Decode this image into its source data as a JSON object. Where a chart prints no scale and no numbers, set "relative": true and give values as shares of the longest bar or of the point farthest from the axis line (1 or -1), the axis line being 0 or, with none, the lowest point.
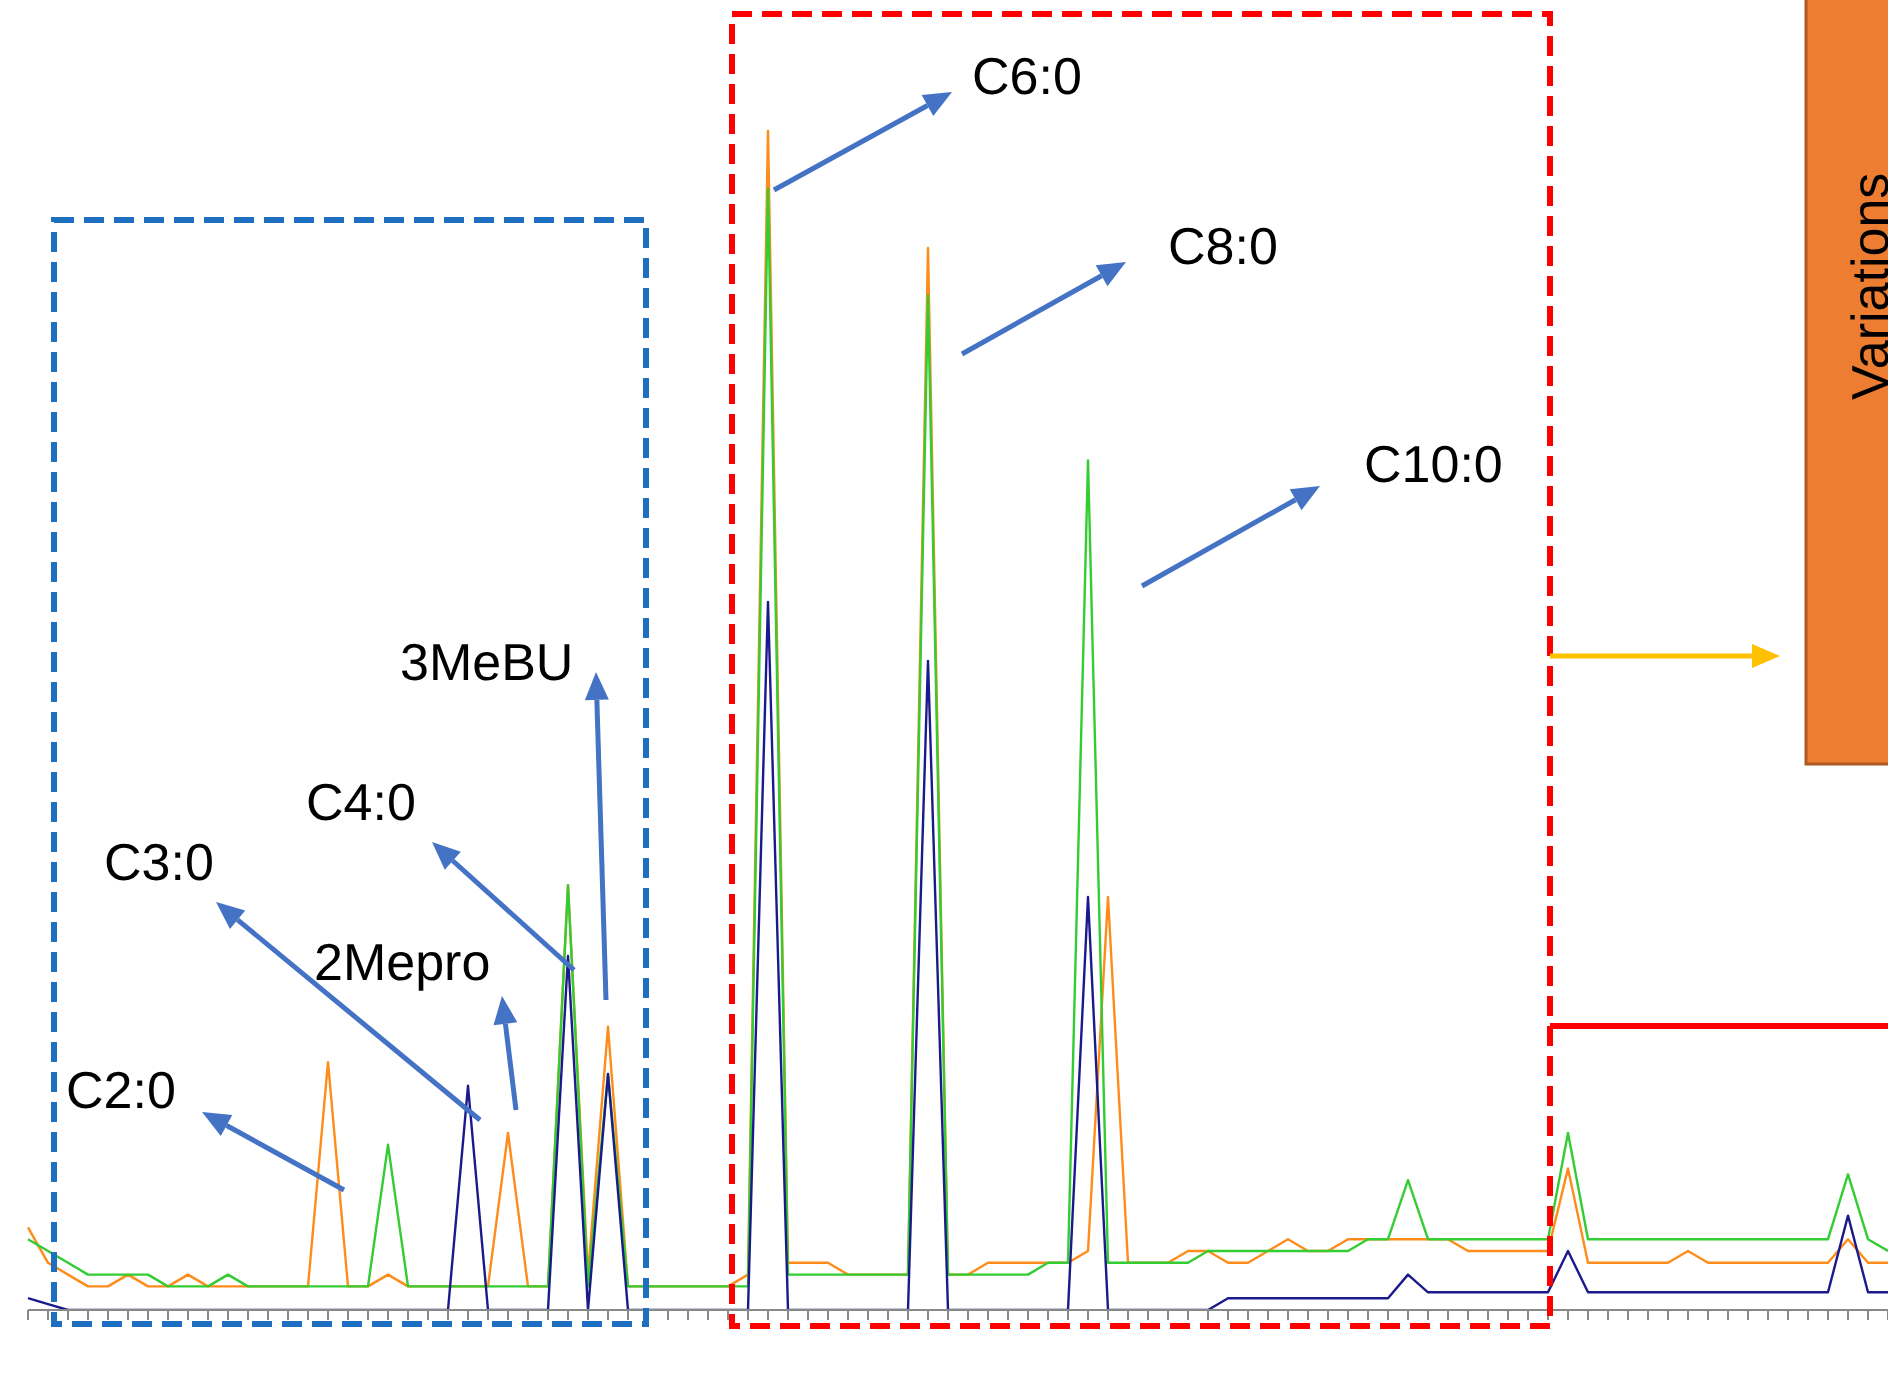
{
  "chart_data": {
    "type": "line",
    "relative": true,
    "categories": [
      null,
      null,
      null,
      null,
      null,
      null,
      null,
      null,
      null,
      null,
      null,
      null,
      null,
      null,
      null,
      null,
      null,
      null,
      null,
      null,
      null,
      null,
      null,
      null,
      null,
      null,
      null,
      null,
      null,
      null,
      null,
      null,
      null,
      null,
      null,
      null,
      null,
      null,
      null,
      null,
      null,
      null,
      null,
      null,
      null,
      null,
      null,
      null,
      null,
      null,
      null,
      null,
      null,
      null,
      null,
      null,
      null,
      null,
      null,
      null,
      null,
      null,
      null,
      null,
      null,
      null,
      null,
      null,
      null,
      null,
      null,
      null,
      null,
      null,
      null,
      null,
      null,
      null,
      null,
      null,
      null,
      null,
      null,
      null,
      null,
      null,
      null,
      null,
      null,
      null,
      null,
      null,
      null,
      null
    ],
    "series": [
      {
        "color": "#ff8c1a",
        "values": [
          0.07,
          0.04,
          0.03,
          0.02,
          0.02,
          0.03,
          0.02,
          0.02,
          0.03,
          0.02,
          0.02,
          0.02,
          0.02,
          0.02,
          0.02,
          0.21,
          0.02,
          0.02,
          0.03,
          0.02,
          0.02,
          0.02,
          0.02,
          0.02,
          0.15,
          0.02,
          0.02,
          0.36,
          0.03,
          0.24,
          0.02,
          0.02,
          0.02,
          0.02,
          0.02,
          0.02,
          0.03,
          1,
          0.04,
          0.04,
          0.04,
          0.03,
          0.03,
          0.03,
          0.03,
          0.9,
          0.03,
          0.03,
          0.04,
          0.04,
          0.04,
          0.04,
          0.04,
          0.05,
          0.35,
          0.04,
          0.04,
          0.04,
          0.05,
          0.05,
          0.04,
          0.04,
          0.05,
          0.06,
          0.05,
          0.05,
          0.06,
          0.06,
          0.06,
          0.06,
          0.06,
          0.06,
          0.05,
          0.05,
          0.05,
          0.05,
          0.05,
          0.12,
          0.04,
          0.04,
          0.04,
          0.04,
          0.04,
          0.05,
          0.04,
          0.04,
          0.04,
          0.04,
          0.04,
          0.04,
          0.04,
          0.06,
          0.04,
          0.04
        ]
      },
      {
        "color": "#33cc33",
        "values": [
          0.06,
          0.05,
          0.04,
          0.03,
          0.03,
          0.03,
          0.03,
          0.02,
          0.02,
          0.02,
          0.03,
          0.02,
          0.02,
          0.02,
          0.02,
          0.02,
          0.02,
          0.02,
          0.14,
          0.02,
          0.02,
          0.02,
          0.02,
          0.02,
          0.02,
          0.02,
          0.02,
          0.36,
          0.02,
          0.2,
          0.02,
          0.02,
          0.02,
          0.02,
          0.02,
          0.02,
          0.02,
          0.95,
          0.03,
          0.03,
          0.03,
          0.03,
          0.03,
          0.03,
          0.03,
          0.86,
          0.03,
          0.03,
          0.03,
          0.03,
          0.03,
          0.04,
          0.04,
          0.72,
          0.04,
          0.04,
          0.04,
          0.04,
          0.04,
          0.05,
          0.05,
          0.05,
          0.05,
          0.05,
          0.05,
          0.05,
          0.05,
          0.06,
          0.06,
          0.11,
          0.06,
          0.06,
          0.06,
          0.06,
          0.06,
          0.06,
          0.06,
          0.15,
          0.06,
          0.06,
          0.06,
          0.06,
          0.06,
          0.06,
          0.06,
          0.06,
          0.06,
          0.06,
          0.06,
          0.06,
          0.06,
          0.115,
          0.06,
          0.05
        ]
      },
      {
        "color": "#1a1a8c",
        "values": [
          0.01,
          0.005,
          0,
          0,
          0,
          0,
          0,
          0,
          0,
          0,
          0,
          0,
          0,
          0,
          0,
          0,
          0,
          0,
          0,
          0,
          0,
          0,
          0.19,
          0,
          0,
          0,
          0,
          0.3,
          0,
          0.2,
          0,
          0,
          0,
          0,
          0,
          0,
          0,
          0.6,
          0,
          0,
          0,
          0,
          0,
          0,
          0,
          0.55,
          0,
          0,
          0,
          0,
          0,
          0,
          0,
          0.35,
          0,
          0,
          0,
          0,
          0,
          0,
          0.01,
          0.01,
          0.01,
          0.01,
          0.01,
          0.01,
          0.01,
          0.01,
          0.01,
          0.03,
          0.015,
          0.015,
          0.015,
          0.015,
          0.015,
          0.015,
          0.015,
          0.05,
          0.015,
          0.015,
          0.015,
          0.015,
          0.015,
          0.015,
          0.015,
          0.015,
          0.015,
          0.015,
          0.015,
          0.015,
          0.015,
          0.08,
          0.015,
          0.015
        ]
      }
    ],
    "annotations": [
      "C6:0",
      "C8:0",
      "C10:0",
      "3MeBU",
      "C4:0",
      "C3:0",
      "2Mepro",
      "C2:0",
      "Variations"
    ]
  }
}
